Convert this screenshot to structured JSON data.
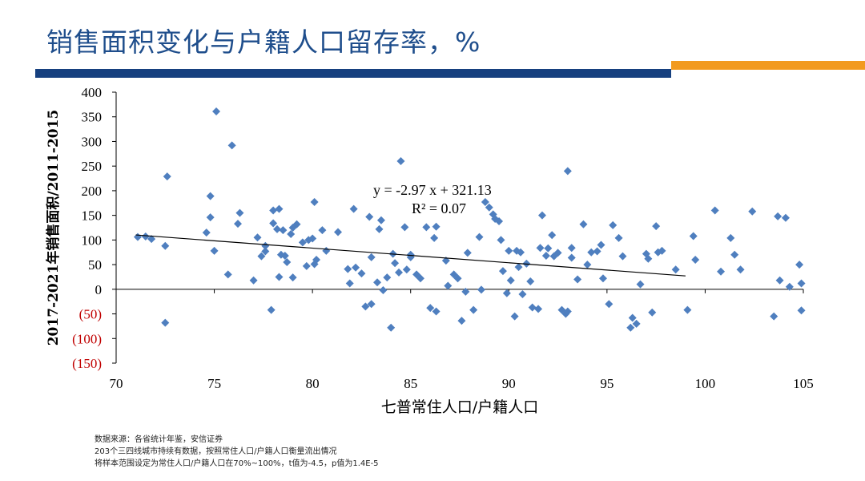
{
  "header": {
    "title": "销售面积变化与户籍人口留存率，%",
    "colors": {
      "title": "#1f4e8c",
      "bar_blue": "#16407f",
      "bar_orange": "#f29a1f"
    }
  },
  "chart_data": {
    "type": "scatter",
    "xlabel": "七普常住人口/户籍人口",
    "ylabel": "2017-2021年销售面积/2011-2015",
    "xlim": [
      70,
      105
    ],
    "ylim": [
      -150,
      400
    ],
    "x_ticks": [
      "70",
      "75",
      "80",
      "85",
      "90",
      "95",
      "100",
      "105"
    ],
    "y_ticks": [
      "400",
      "350",
      "300",
      "250",
      "200",
      "150",
      "100",
      "50",
      "0",
      "(50)",
      "(100)",
      "(150)"
    ],
    "tick_colors": {
      "positive": "#000000",
      "negative": "#c00000"
    },
    "marker_color": "#4f7fbf",
    "trendline": {
      "equation": "y = -2.97 x + 321.13",
      "r2": "R² = 0.07",
      "slope": -2.97,
      "intercept": 321.13,
      "x_range": [
        71,
        99
      ]
    },
    "points": [
      [
        71.1,
        106
      ],
      [
        71.5,
        107
      ],
      [
        71.8,
        102
      ],
      [
        72.5,
        88
      ],
      [
        72.5,
        -68
      ],
      [
        72.6,
        229
      ],
      [
        74.6,
        115
      ],
      [
        74.8,
        146
      ],
      [
        74.8,
        189
      ],
      [
        75.0,
        78
      ],
      [
        75.1,
        361
      ],
      [
        75.7,
        30
      ],
      [
        75.9,
        292
      ],
      [
        76.2,
        133
      ],
      [
        76.3,
        155
      ],
      [
        77.0,
        18
      ],
      [
        77.2,
        105
      ],
      [
        77.4,
        67
      ],
      [
        77.6,
        77
      ],
      [
        77.6,
        88
      ],
      [
        77.9,
        -42
      ],
      [
        78.0,
        134
      ],
      [
        78.0,
        160
      ],
      [
        78.2,
        122
      ],
      [
        78.3,
        25
      ],
      [
        78.3,
        163
      ],
      [
        78.4,
        70
      ],
      [
        78.5,
        120
      ],
      [
        78.6,
        68
      ],
      [
        78.7,
        55
      ],
      [
        78.9,
        112
      ],
      [
        79.0,
        125
      ],
      [
        79.0,
        24
      ],
      [
        79.2,
        132
      ],
      [
        79.5,
        95
      ],
      [
        79.7,
        47
      ],
      [
        79.8,
        100
      ],
      [
        80.0,
        103
      ],
      [
        80.1,
        177
      ],
      [
        80.1,
        51
      ],
      [
        80.2,
        60
      ],
      [
        80.5,
        120
      ],
      [
        80.7,
        78
      ],
      [
        81.3,
        116
      ],
      [
        81.8,
        41
      ],
      [
        81.9,
        12
      ],
      [
        82.1,
        163
      ],
      [
        82.2,
        44
      ],
      [
        82.5,
        32
      ],
      [
        82.7,
        -35
      ],
      [
        82.9,
        147
      ],
      [
        83.0,
        65
      ],
      [
        83.0,
        -30
      ],
      [
        83.3,
        14
      ],
      [
        83.4,
        122
      ],
      [
        83.5,
        140
      ],
      [
        83.6,
        -2
      ],
      [
        83.8,
        24
      ],
      [
        84.0,
        -78
      ],
      [
        84.1,
        72
      ],
      [
        84.2,
        53
      ],
      [
        84.4,
        34
      ],
      [
        84.5,
        260
      ],
      [
        84.7,
        126
      ],
      [
        84.8,
        40
      ],
      [
        85.0,
        65
      ],
      [
        85.0,
        70
      ],
      [
        85.3,
        30
      ],
      [
        85.5,
        22
      ],
      [
        85.8,
        126
      ],
      [
        86.0,
        -38
      ],
      [
        86.2,
        104
      ],
      [
        86.3,
        127
      ],
      [
        86.3,
        -45
      ],
      [
        86.8,
        58
      ],
      [
        86.9,
        7
      ],
      [
        87.2,
        30
      ],
      [
        87.4,
        22
      ],
      [
        87.6,
        -64
      ],
      [
        87.8,
        -5
      ],
      [
        87.9,
        74
      ],
      [
        88.2,
        -42
      ],
      [
        88.5,
        106
      ],
      [
        88.6,
        -1
      ],
      [
        88.8,
        177
      ],
      [
        89.0,
        166
      ],
      [
        89.2,
        152
      ],
      [
        89.3,
        143
      ],
      [
        89.5,
        138
      ],
      [
        89.6,
        100
      ],
      [
        89.7,
        37
      ],
      [
        89.9,
        -8
      ],
      [
        90.0,
        78
      ],
      [
        90.1,
        18
      ],
      [
        90.3,
        -55
      ],
      [
        90.4,
        78
      ],
      [
        90.5,
        45
      ],
      [
        90.6,
        75
      ],
      [
        90.7,
        -10
      ],
      [
        90.9,
        52
      ],
      [
        91.1,
        16
      ],
      [
        91.2,
        -37
      ],
      [
        91.5,
        -40
      ],
      [
        91.6,
        84
      ],
      [
        91.7,
        150
      ],
      [
        91.9,
        68
      ],
      [
        92.0,
        83
      ],
      [
        92.2,
        110
      ],
      [
        92.3,
        67
      ],
      [
        92.5,
        74
      ],
      [
        92.7,
        -42
      ],
      [
        92.9,
        -50
      ],
      [
        93.0,
        -45
      ],
      [
        93.0,
        240
      ],
      [
        93.2,
        84
      ],
      [
        93.2,
        64
      ],
      [
        93.5,
        20
      ],
      [
        93.8,
        132
      ],
      [
        94.0,
        50
      ],
      [
        94.2,
        75
      ],
      [
        94.5,
        77
      ],
      [
        94.7,
        90
      ],
      [
        94.8,
        22
      ],
      [
        95.1,
        -30
      ],
      [
        95.3,
        130
      ],
      [
        95.6,
        104
      ],
      [
        95.8,
        67
      ],
      [
        96.2,
        -78
      ],
      [
        96.3,
        -58
      ],
      [
        96.5,
        -70
      ],
      [
        96.7,
        10
      ],
      [
        97.0,
        72
      ],
      [
        97.1,
        62
      ],
      [
        97.3,
        -47
      ],
      [
        97.5,
        128
      ],
      [
        97.6,
        75
      ],
      [
        97.8,
        78
      ],
      [
        98.5,
        40
      ],
      [
        99.1,
        -42
      ],
      [
        99.4,
        108
      ],
      [
        99.5,
        60
      ],
      [
        100.5,
        160
      ],
      [
        100.8,
        36
      ],
      [
        101.3,
        104
      ],
      [
        101.5,
        70
      ],
      [
        101.8,
        40
      ],
      [
        102.4,
        158
      ],
      [
        103.5,
        -55
      ],
      [
        103.7,
        148
      ],
      [
        103.8,
        18
      ],
      [
        104.1,
        145
      ],
      [
        104.3,
        5
      ],
      [
        104.8,
        50
      ],
      [
        104.9,
        12
      ],
      [
        104.9,
        -43
      ]
    ]
  },
  "notes": {
    "line1": "数据来源：各省统计年鉴，安信证券",
    "line2": "203个三四线城市持续有数据，按照常住人口/户籍人口衡量流出情况",
    "line3": "将样本范围设定为常住人口/户籍人口在70%~100%，t值为-4.5，p值为1.4E-5"
  }
}
